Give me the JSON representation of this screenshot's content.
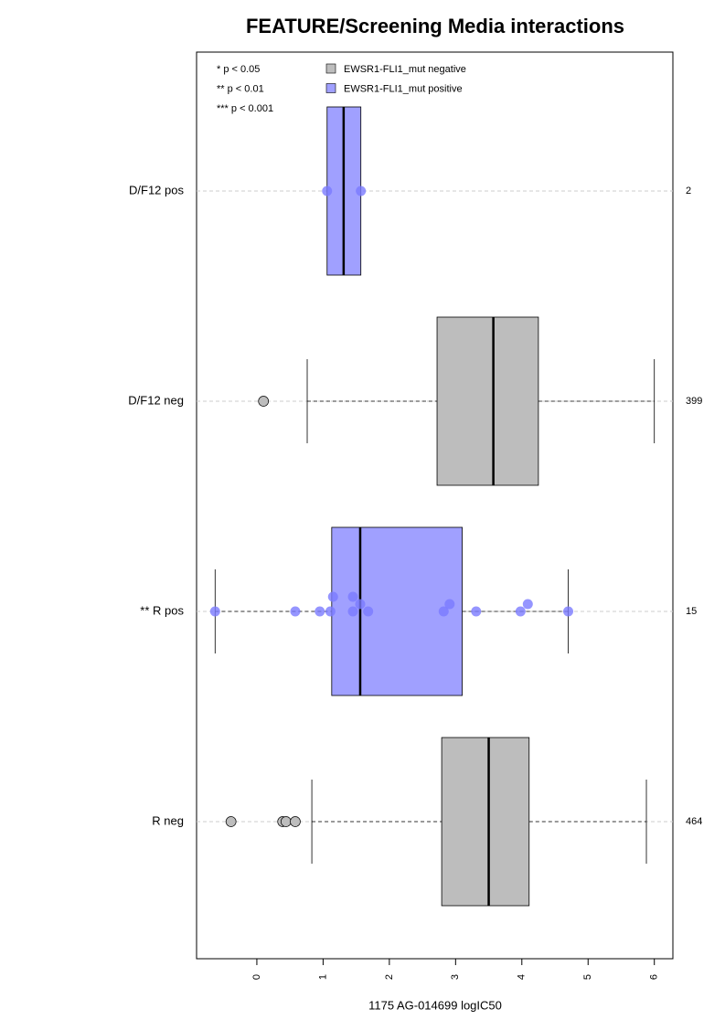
{
  "chart_data": {
    "type": "boxplot",
    "title": "FEATURE/Screening Media interactions",
    "x_label": "1175 AG-014699 logIC50",
    "xlim": [
      -0.91,
      6.28
    ],
    "xticks": [
      0,
      1,
      2,
      3,
      4,
      5,
      6
    ],
    "significance_notes": [
      "* p < 0.05",
      "** p < 0.01",
      "*** p < 0.001"
    ],
    "legend": [
      {
        "name": "EWSR1-FLI1_mut negative",
        "color": "#bdbdbd"
      },
      {
        "name": "EWSR1-FLI1_mut positive",
        "color": "#a0a0ff"
      }
    ],
    "groups": [
      {
        "label": "D/F12 pos",
        "n": "2",
        "color": "#a0a0ff",
        "point_color": "#7b7bff",
        "q1": 1.06,
        "median": 1.31,
        "q3": 1.57,
        "points": [
          1.06,
          1.57
        ],
        "outliers": []
      },
      {
        "label": "D/F12 neg",
        "n": "399",
        "color": "#bdbdbd",
        "point_color": "#aaaaaa",
        "whisker_low": 0.76,
        "q1": 2.72,
        "median": 3.57,
        "q3": 4.25,
        "whisker_high": 6.0,
        "points": [],
        "outliers": [
          0.1
        ]
      },
      {
        "label": "** R pos",
        "n": "15",
        "color": "#a0a0ff",
        "point_color": "#7b7bff",
        "whisker_low": -0.63,
        "q1": 1.13,
        "median": 1.56,
        "q3": 3.1,
        "whisker_high": 4.7,
        "points": [
          -0.63,
          0.58,
          0.95,
          1.11,
          1.15,
          1.45,
          1.45,
          1.56,
          1.68,
          2.82,
          2.91,
          3.31,
          3.98,
          4.09,
          4.7
        ],
        "outliers": []
      },
      {
        "label": "R neg",
        "n": "464",
        "color": "#bdbdbd",
        "point_color": "#aaaaaa",
        "whisker_low": 0.83,
        "q1": 2.79,
        "median": 3.5,
        "q3": 4.11,
        "whisker_high": 5.88,
        "points": [],
        "outliers": [
          -0.39,
          0.39,
          0.44,
          0.58
        ]
      }
    ]
  }
}
